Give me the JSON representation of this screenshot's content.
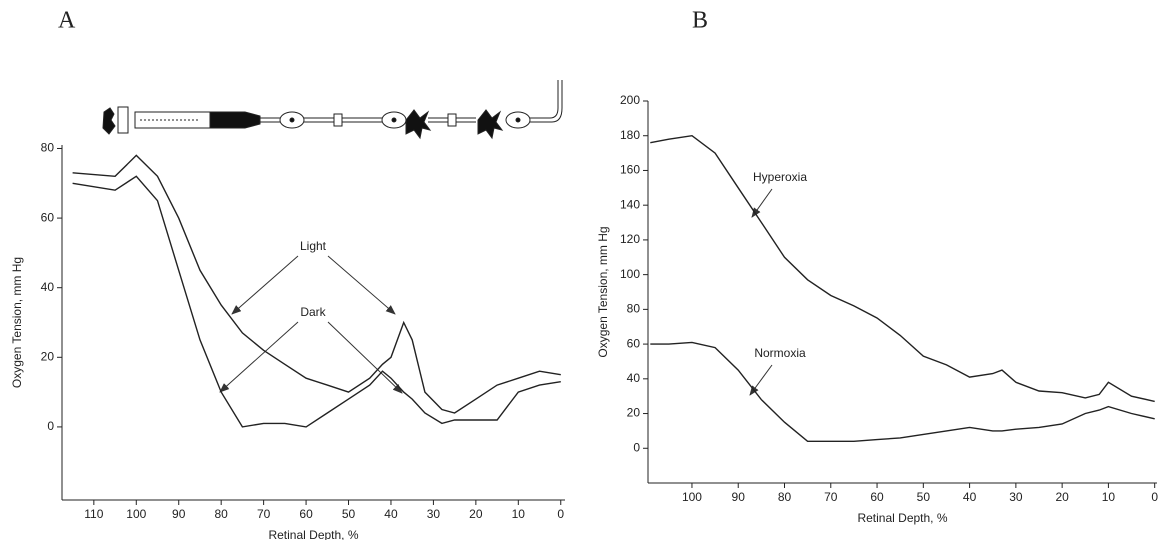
{
  "chart_data": [
    {
      "type": "line",
      "panel_label": "A",
      "xlabel": "Retinal Depth, %",
      "ylabel": "Oxygen Tension, mm Hg",
      "x": [
        115,
        105,
        100,
        95,
        90,
        85,
        80,
        75,
        70,
        65,
        60,
        55,
        50,
        45,
        42,
        40,
        37,
        35,
        32,
        28,
        25,
        20,
        15,
        10,
        5,
        0
      ],
      "series": [
        {
          "name": "Light",
          "color": "#222222",
          "values": [
            73,
            72,
            78,
            72,
            60,
            45,
            35,
            27,
            22,
            18,
            14,
            12,
            10,
            14,
            18,
            20,
            30,
            25,
            10,
            5,
            4,
            8,
            12,
            14,
            16,
            15
          ]
        },
        {
          "name": "Dark",
          "color": "#222222",
          "values": [
            70,
            68,
            72,
            65,
            45,
            25,
            10,
            0,
            1,
            1,
            0,
            4,
            8,
            12,
            16,
            14,
            10,
            8,
            4,
            1,
            2,
            2,
            2,
            10,
            12,
            13
          ]
        }
      ],
      "xlim": [
        117.5,
        -1
      ],
      "ylim": [
        -21,
        81
      ],
      "xticks": [
        110,
        100,
        90,
        80,
        70,
        60,
        50,
        40,
        30,
        20,
        10,
        0
      ],
      "yticks": [
        0,
        20,
        40,
        60,
        80
      ]
    },
    {
      "type": "line",
      "panel_label": "B",
      "xlabel": "Retinal Depth, %",
      "ylabel": "Oxygen Tension, mm Hg",
      "x": [
        109,
        105,
        100,
        95,
        90,
        85,
        80,
        75,
        70,
        65,
        60,
        55,
        50,
        45,
        40,
        35,
        33,
        30,
        25,
        20,
        15,
        12,
        10,
        5,
        0
      ],
      "series": [
        {
          "name": "Hyperoxia",
          "color": "#222222",
          "values": [
            176,
            178,
            180,
            170,
            150,
            130,
            110,
            97,
            88,
            82,
            75,
            65,
            53,
            48,
            41,
            43,
            45,
            38,
            33,
            32,
            29,
            31,
            38,
            30,
            27
          ]
        },
        {
          "name": "Normoxia",
          "color": "#222222",
          "values": [
            60,
            60,
            61,
            58,
            45,
            28,
            15,
            4,
            4,
            4,
            5,
            6,
            8,
            10,
            12,
            10,
            10,
            11,
            12,
            14,
            20,
            22,
            24,
            20,
            17
          ]
        }
      ],
      "xlim": [
        109.5,
        -0.5
      ],
      "ylim": [
        -20,
        200
      ],
      "xticks": [
        100,
        90,
        80,
        70,
        60,
        50,
        40,
        30,
        20,
        10,
        0
      ],
      "yticks": [
        0,
        20,
        40,
        60,
        80,
        100,
        120,
        140,
        160,
        180,
        200
      ]
    }
  ]
}
